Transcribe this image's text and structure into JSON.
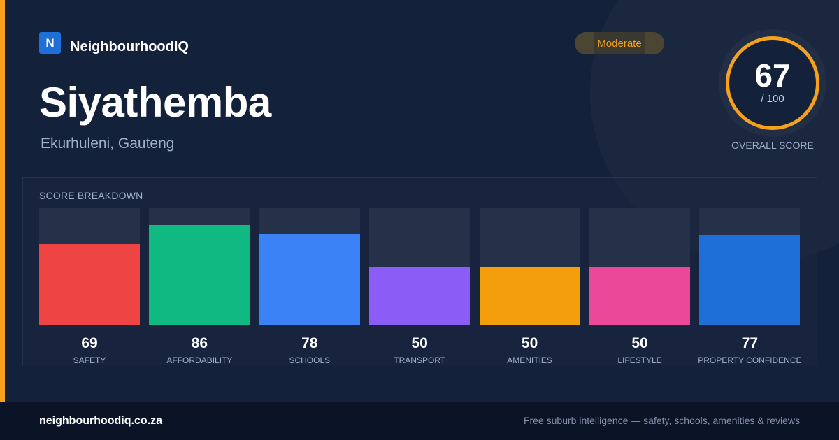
{
  "brand": {
    "logo_letter": "N",
    "name": "NeighbourhoodIQ"
  },
  "suburb": {
    "name": "Siyathemba",
    "location": "Ekurhuleni, Gauteng"
  },
  "rating_badge": "Moderate",
  "overall": {
    "score": "67",
    "max": "/ 100",
    "label": "OVERALL SCORE",
    "ring_color": "#f5a11c"
  },
  "breakdown_title": "SCORE BREAKDOWN",
  "chart_data": {
    "type": "bar",
    "categories": [
      "SAFETY",
      "AFFORDABILITY",
      "SCHOOLS",
      "TRANSPORT",
      "AMENITIES",
      "LIFESTYLE",
      "PROPERTY CONFIDENCE"
    ],
    "values": [
      69,
      86,
      78,
      50,
      50,
      50,
      77
    ],
    "colors": [
      "#ef4444",
      "#10b981",
      "#3b82f6",
      "#8b5cf6",
      "#f59e0b",
      "#ec4899",
      "#1f6fd9"
    ],
    "ylim": [
      0,
      100
    ]
  },
  "footer": {
    "site": "neighbourhoodiq.co.za",
    "tagline": "Free suburb intelligence — safety, schools, amenities & reviews"
  },
  "colors": {
    "accent": "#f5a11c",
    "background": "#14213b",
    "footer_background": "#0b1426"
  }
}
